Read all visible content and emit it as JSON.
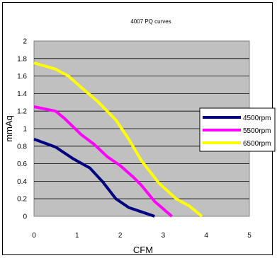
{
  "chart_data": {
    "type": "line",
    "title": "4007 PQ curves",
    "xlabel": "CFM",
    "ylabel": "mmAq",
    "xlim": [
      0,
      5
    ],
    "ylim": [
      0,
      2
    ],
    "xticks": [
      "0",
      "1",
      "2",
      "3",
      "4",
      "5"
    ],
    "yticks": [
      "0",
      "0.2",
      "0.4",
      "0.6",
      "0.8",
      "1",
      "1.2",
      "1.4",
      "1.6",
      "1.8",
      "2"
    ],
    "grid": "horizontal",
    "legend_position": "right",
    "plot_background": "#c0c0c0",
    "series": [
      {
        "name": "4500rpm",
        "color": "#000080",
        "x": [
          0,
          0.5,
          0.9,
          1.3,
          1.6,
          1.9,
          2.2,
          2.5,
          2.8
        ],
        "y": [
          0.88,
          0.79,
          0.66,
          0.55,
          0.39,
          0.2,
          0.1,
          0.05,
          0
        ]
      },
      {
        "name": "5500rpm",
        "color": "#ff00ff",
        "x": [
          0,
          0.5,
          0.7,
          1.1,
          1.4,
          1.7,
          2.0,
          2.3,
          2.5,
          2.8,
          3.2
        ],
        "y": [
          1.25,
          1.2,
          1.12,
          0.93,
          0.82,
          0.68,
          0.58,
          0.45,
          0.35,
          0.17,
          0
        ]
      },
      {
        "name": "6500rpm",
        "color": "#ffff00",
        "x": [
          0,
          0.5,
          0.8,
          1.1,
          1.5,
          1.9,
          2.2,
          2.5,
          2.9,
          3.3,
          3.6,
          3.9
        ],
        "y": [
          1.75,
          1.68,
          1.6,
          1.47,
          1.3,
          1.1,
          0.88,
          0.63,
          0.38,
          0.2,
          0.12,
          0
        ]
      }
    ]
  }
}
